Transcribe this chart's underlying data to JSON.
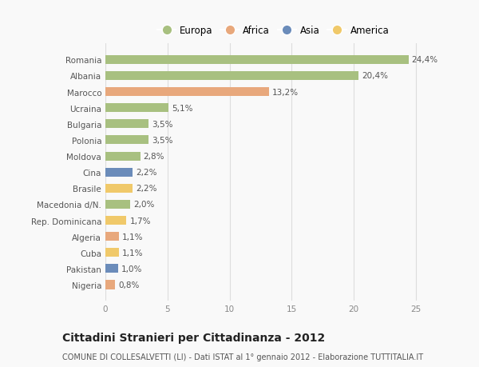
{
  "categories": [
    "Nigeria",
    "Pakistan",
    "Cuba",
    "Algeria",
    "Rep. Dominicana",
    "Macedonia d/N.",
    "Brasile",
    "Cina",
    "Moldova",
    "Polonia",
    "Bulgaria",
    "Ucraina",
    "Marocco",
    "Albania",
    "Romania"
  ],
  "values": [
    0.8,
    1.0,
    1.1,
    1.1,
    1.7,
    2.0,
    2.2,
    2.2,
    2.8,
    3.5,
    3.5,
    5.1,
    13.2,
    20.4,
    24.4
  ],
  "colors": [
    "#e8a87c",
    "#6b8cba",
    "#f0c96a",
    "#e8a87c",
    "#f0c96a",
    "#a8c080",
    "#f0c96a",
    "#6b8cba",
    "#a8c080",
    "#a8c080",
    "#a8c080",
    "#a8c080",
    "#e8a87c",
    "#a8c080",
    "#a8c080"
  ],
  "labels": [
    "0,8%",
    "1,0%",
    "1,1%",
    "1,1%",
    "1,7%",
    "2,0%",
    "2,2%",
    "2,2%",
    "2,8%",
    "3,5%",
    "3,5%",
    "5,1%",
    "13,2%",
    "20,4%",
    "24,4%"
  ],
  "legend": [
    {
      "label": "Europa",
      "color": "#a8c080"
    },
    {
      "label": "Africa",
      "color": "#e8a87c"
    },
    {
      "label": "Asia",
      "color": "#6b8cba"
    },
    {
      "label": "America",
      "color": "#f0c96a"
    }
  ],
  "title": "Cittadini Stranieri per Cittadinanza - 2012",
  "subtitle": "COMUNE DI COLLESALVETTI (LI) - Dati ISTAT al 1° gennaio 2012 - Elaborazione TUTTITALIA.IT",
  "xlim": [
    0,
    27
  ],
  "xticks": [
    0,
    5,
    10,
    15,
    20,
    25
  ],
  "background_color": "#f9f9f9",
  "bar_height": 0.55,
  "label_fontsize": 7.5,
  "tick_fontsize": 7.5,
  "title_fontsize": 10,
  "subtitle_fontsize": 7
}
